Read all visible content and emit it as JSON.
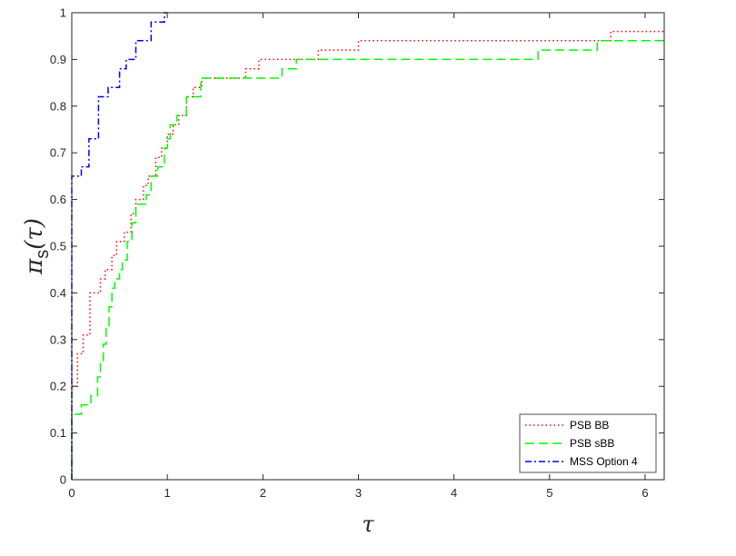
{
  "chart_data": {
    "type": "line",
    "title": "",
    "xlabel": "τ",
    "ylabel": {
      "main": "π",
      "sub": "s",
      "arg": "(τ)"
    },
    "xlim": [
      0,
      6.2
    ],
    "ylim": [
      0,
      1
    ],
    "xticks": [
      0,
      1,
      2,
      3,
      4,
      5,
      6
    ],
    "yticks": [
      0,
      0.1,
      0.2,
      0.3,
      0.4,
      0.5,
      0.6,
      0.7,
      0.8,
      0.9,
      1
    ],
    "xtick_labels": [
      "0",
      "1",
      "2",
      "3",
      "4",
      "5",
      "6"
    ],
    "ytick_labels": [
      "0",
      "0.1",
      "0.2",
      "0.3",
      "0.4",
      "0.5",
      "0.6",
      "0.7",
      "0.8",
      "0.9",
      "1"
    ],
    "grid": false,
    "legend_position": "bottom-right",
    "series": [
      {
        "name": "PSB BB",
        "color": "#ff0000",
        "dash": "dotted",
        "step": true,
        "points": [
          [
            0,
            0
          ],
          [
            0,
            0.2
          ],
          [
            0.06,
            0.2
          ],
          [
            0.06,
            0.27
          ],
          [
            0.12,
            0.27
          ],
          [
            0.12,
            0.31
          ],
          [
            0.19,
            0.31
          ],
          [
            0.19,
            0.4
          ],
          [
            0.3,
            0.4
          ],
          [
            0.3,
            0.43
          ],
          [
            0.35,
            0.43
          ],
          [
            0.35,
            0.45
          ],
          [
            0.42,
            0.45
          ],
          [
            0.42,
            0.48
          ],
          [
            0.47,
            0.48
          ],
          [
            0.47,
            0.51
          ],
          [
            0.55,
            0.51
          ],
          [
            0.55,
            0.53
          ],
          [
            0.62,
            0.53
          ],
          [
            0.62,
            0.57
          ],
          [
            0.67,
            0.57
          ],
          [
            0.67,
            0.6
          ],
          [
            0.75,
            0.6
          ],
          [
            0.75,
            0.63
          ],
          [
            0.8,
            0.63
          ],
          [
            0.8,
            0.65
          ],
          [
            0.88,
            0.65
          ],
          [
            0.88,
            0.69
          ],
          [
            0.94,
            0.69
          ],
          [
            0.94,
            0.71
          ],
          [
            1.0,
            0.71
          ],
          [
            1.0,
            0.74
          ],
          [
            1.06,
            0.74
          ],
          [
            1.06,
            0.76
          ],
          [
            1.12,
            0.76
          ],
          [
            1.12,
            0.78
          ],
          [
            1.2,
            0.78
          ],
          [
            1.2,
            0.82
          ],
          [
            1.27,
            0.82
          ],
          [
            1.27,
            0.84
          ],
          [
            1.36,
            0.84
          ],
          [
            1.36,
            0.86
          ],
          [
            1.82,
            0.86
          ],
          [
            1.82,
            0.88
          ],
          [
            1.96,
            0.88
          ],
          [
            1.96,
            0.9
          ],
          [
            2.58,
            0.9
          ],
          [
            2.58,
            0.92
          ],
          [
            3.0,
            0.92
          ],
          [
            3.0,
            0.94
          ],
          [
            5.64,
            0.94
          ],
          [
            5.64,
            0.96
          ],
          [
            6.2,
            0.96
          ]
        ]
      },
      {
        "name": "PSB sBB",
        "color": "#00ff00",
        "dash": "dashed",
        "step": true,
        "points": [
          [
            0,
            0
          ],
          [
            0,
            0.14
          ],
          [
            0.1,
            0.14
          ],
          [
            0.1,
            0.16
          ],
          [
            0.2,
            0.16
          ],
          [
            0.2,
            0.18
          ],
          [
            0.27,
            0.18
          ],
          [
            0.27,
            0.22
          ],
          [
            0.3,
            0.22
          ],
          [
            0.3,
            0.25
          ],
          [
            0.33,
            0.25
          ],
          [
            0.33,
            0.29
          ],
          [
            0.36,
            0.29
          ],
          [
            0.36,
            0.33
          ],
          [
            0.39,
            0.33
          ],
          [
            0.39,
            0.37
          ],
          [
            0.42,
            0.37
          ],
          [
            0.42,
            0.41
          ],
          [
            0.45,
            0.41
          ],
          [
            0.45,
            0.43
          ],
          [
            0.5,
            0.43
          ],
          [
            0.5,
            0.45
          ],
          [
            0.53,
            0.45
          ],
          [
            0.53,
            0.47
          ],
          [
            0.58,
            0.47
          ],
          [
            0.58,
            0.51
          ],
          [
            0.63,
            0.51
          ],
          [
            0.63,
            0.55
          ],
          [
            0.67,
            0.55
          ],
          [
            0.67,
            0.59
          ],
          [
            0.78,
            0.59
          ],
          [
            0.78,
            0.61
          ],
          [
            0.83,
            0.61
          ],
          [
            0.83,
            0.65
          ],
          [
            0.9,
            0.65
          ],
          [
            0.9,
            0.67
          ],
          [
            0.97,
            0.67
          ],
          [
            0.97,
            0.71
          ],
          [
            1.0,
            0.71
          ],
          [
            1.0,
            0.73
          ],
          [
            1.03,
            0.73
          ],
          [
            1.03,
            0.76
          ],
          [
            1.1,
            0.76
          ],
          [
            1.1,
            0.78
          ],
          [
            1.2,
            0.78
          ],
          [
            1.2,
            0.82
          ],
          [
            1.35,
            0.82
          ],
          [
            1.35,
            0.86
          ],
          [
            2.2,
            0.86
          ],
          [
            2.2,
            0.88
          ],
          [
            2.35,
            0.88
          ],
          [
            2.35,
            0.9
          ],
          [
            4.88,
            0.9
          ],
          [
            4.88,
            0.92
          ],
          [
            5.5,
            0.92
          ],
          [
            5.5,
            0.94
          ],
          [
            6.2,
            0.94
          ]
        ]
      },
      {
        "name": "MSS Option 4",
        "color": "#0000ff",
        "dash": "dashdot",
        "step": true,
        "points": [
          [
            0,
            0
          ],
          [
            0,
            0.65
          ],
          [
            0.1,
            0.65
          ],
          [
            0.1,
            0.67
          ],
          [
            0.18,
            0.67
          ],
          [
            0.18,
            0.73
          ],
          [
            0.28,
            0.73
          ],
          [
            0.28,
            0.82
          ],
          [
            0.38,
            0.82
          ],
          [
            0.38,
            0.84
          ],
          [
            0.5,
            0.84
          ],
          [
            0.5,
            0.88
          ],
          [
            0.57,
            0.88
          ],
          [
            0.57,
            0.9
          ],
          [
            0.67,
            0.9
          ],
          [
            0.67,
            0.94
          ],
          [
            0.83,
            0.94
          ],
          [
            0.83,
            0.98
          ],
          [
            0.97,
            0.98
          ],
          [
            0.97,
            1.0
          ],
          [
            1.0,
            1.0
          ]
        ]
      }
    ]
  }
}
